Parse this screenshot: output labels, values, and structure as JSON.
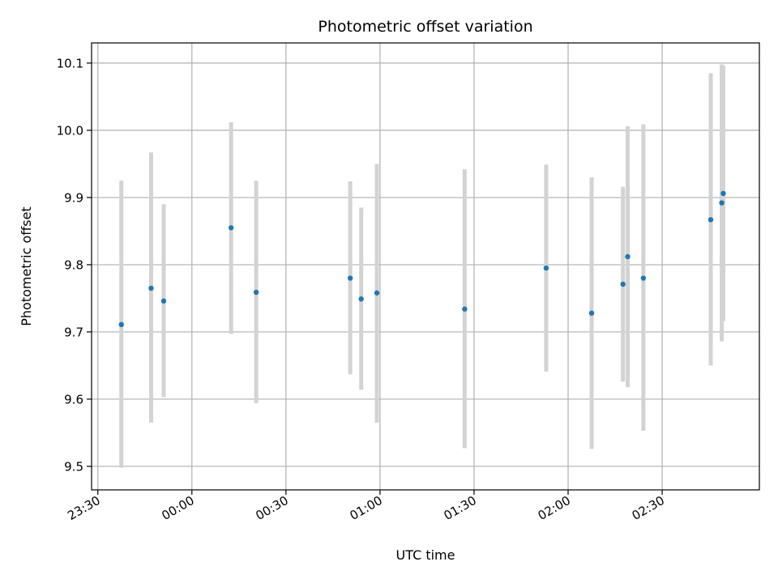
{
  "chart_data": {
    "type": "scatter",
    "title": "Photometric offset variation",
    "xlabel": "UTC time",
    "ylabel": "Photometric offset",
    "grid": true,
    "x_axis": {
      "kind": "time",
      "range": [
        "23:28",
        "03:01"
      ],
      "ticks": [
        "23:30",
        "00:00",
        "00:30",
        "01:00",
        "01:30",
        "02:00",
        "02:30"
      ]
    },
    "y_axis": {
      "range": [
        9.465,
        10.13
      ],
      "ticks": [
        "9.5",
        "9.6",
        "9.7",
        "9.8",
        "9.9",
        "10.0",
        "10.1"
      ]
    },
    "error_bar_color": "#d3d3d3",
    "marker_color": "#1f77b4",
    "points": [
      {
        "t": "23:37.5",
        "y": 9.711,
        "err_low": 9.498,
        "err_high": 9.925
      },
      {
        "t": "23:47",
        "y": 9.765,
        "err_low": 9.565,
        "err_high": 9.967
      },
      {
        "t": "23:51",
        "y": 9.746,
        "err_low": 9.603,
        "err_high": 9.89
      },
      {
        "t": "00:12.5",
        "y": 9.855,
        "err_low": 9.697,
        "err_high": 10.012
      },
      {
        "t": "00:20.5",
        "y": 9.759,
        "err_low": 9.594,
        "err_high": 9.925
      },
      {
        "t": "00:50.5",
        "y": 9.78,
        "err_low": 9.637,
        "err_high": 9.924
      },
      {
        "t": "00:54",
        "y": 9.749,
        "err_low": 9.614,
        "err_high": 9.885
      },
      {
        "t": "00:59",
        "y": 9.758,
        "err_low": 9.565,
        "err_high": 9.95
      },
      {
        "t": "01:27",
        "y": 9.734,
        "err_low": 9.527,
        "err_high": 9.942
      },
      {
        "t": "01:53",
        "y": 9.795,
        "err_low": 9.641,
        "err_high": 9.949
      },
      {
        "t": "02:07.5",
        "y": 9.728,
        "err_low": 9.526,
        "err_high": 9.93
      },
      {
        "t": "02:17.5",
        "y": 9.771,
        "err_low": 9.626,
        "err_high": 9.916
      },
      {
        "t": "02:19",
        "y": 9.812,
        "err_low": 9.618,
        "err_high": 10.006
      },
      {
        "t": "02:24",
        "y": 9.78,
        "err_low": 9.553,
        "err_high": 10.009
      },
      {
        "t": "02:45.5",
        "y": 9.867,
        "err_low": 9.65,
        "err_high": 10.085
      },
      {
        "t": "02:49",
        "y": 9.892,
        "err_low": 9.686,
        "err_high": 10.098
      },
      {
        "t": "02:49.5",
        "y": 9.906,
        "err_low": 9.716,
        "err_high": 10.096
      }
    ]
  }
}
